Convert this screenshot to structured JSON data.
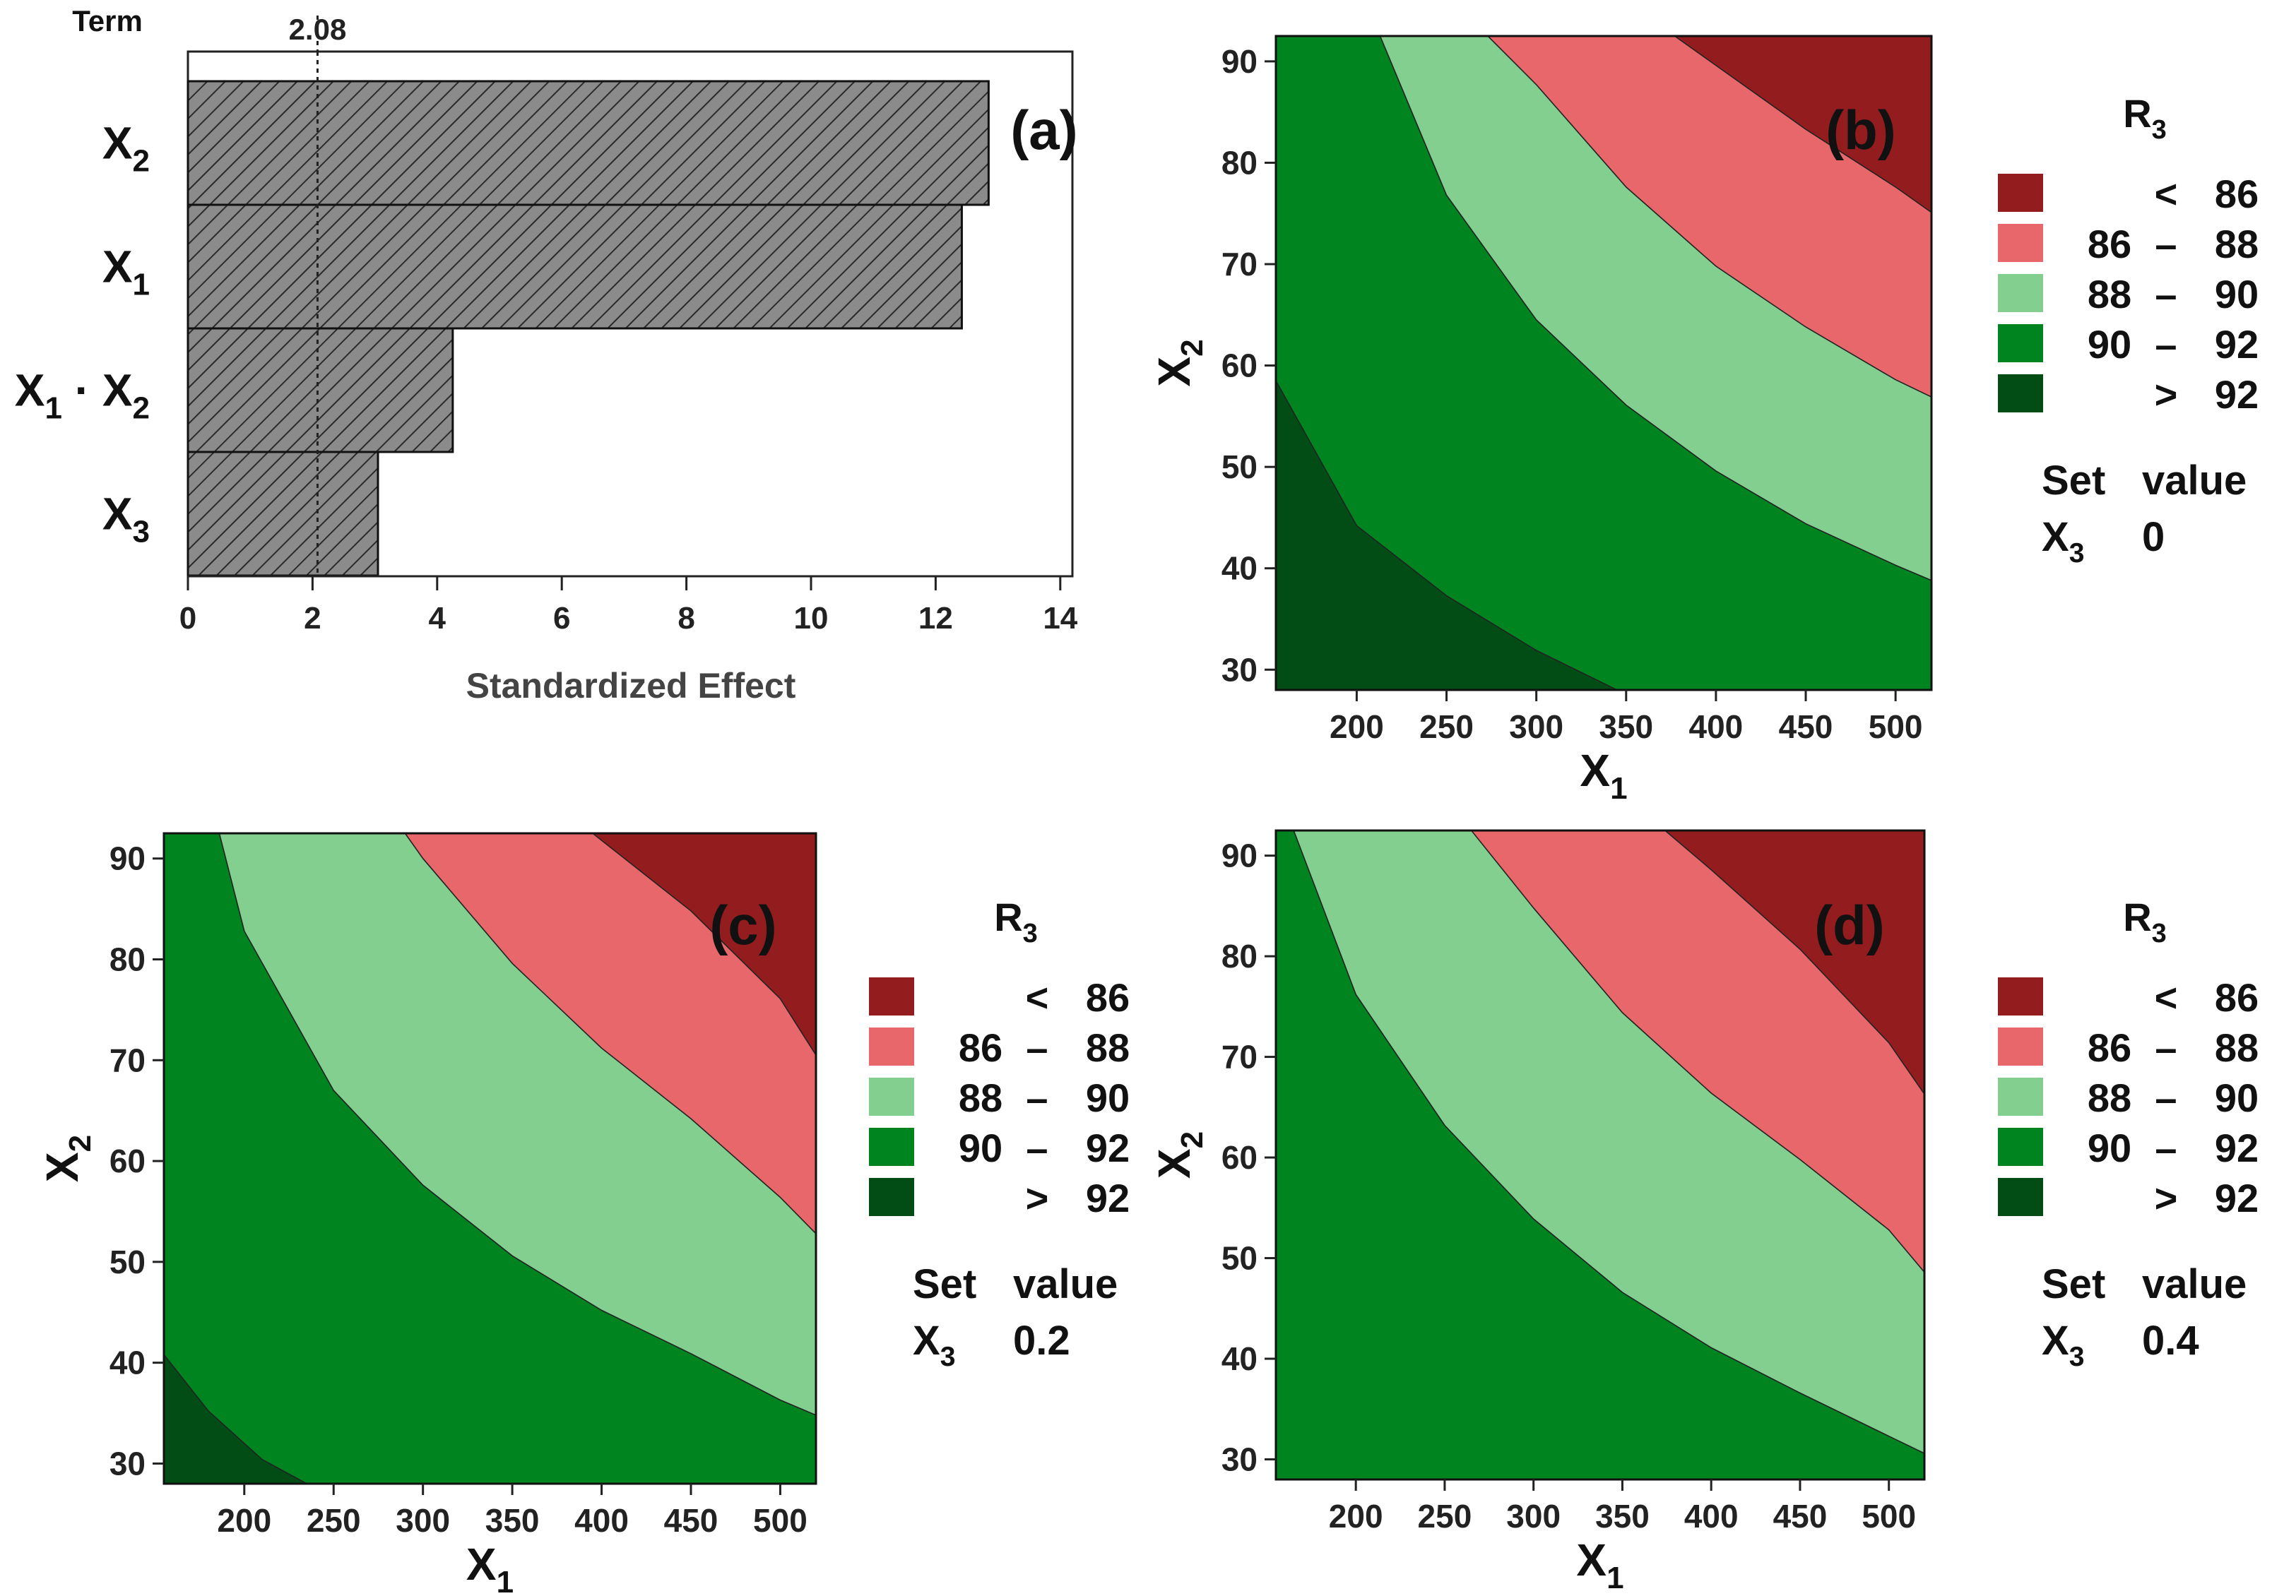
{
  "chart_data": [
    {
      "type": "bar",
      "orientation": "horizontal",
      "panel_label": "(a)",
      "term_header": "Term",
      "xlabel": "Standardized Effect",
      "xlim": [
        0,
        14.2
      ],
      "xticks": [
        0,
        2,
        4,
        6,
        8,
        10,
        12,
        14
      ],
      "reference_value": 2.08,
      "reference_label": "2.08",
      "categories": [
        {
          "base": "X",
          "sub": "2",
          "label": "X2"
        },
        {
          "base": "X",
          "sub": "1",
          "label": "X1"
        },
        {
          "base": "X",
          "sub": "1",
          "mid": " · X",
          "sub2": "2",
          "label": "X1 · X2"
        },
        {
          "base": "X",
          "sub": "3",
          "label": "X3"
        }
      ],
      "values": [
        12.85,
        12.42,
        4.25,
        3.05
      ]
    },
    {
      "type": "contour",
      "panel_label": "(b)",
      "xlabel": {
        "base": "X",
        "sub": "1"
      },
      "ylabel": {
        "base": "X",
        "sub": "2"
      },
      "xlim": [
        155,
        520
      ],
      "ylim": [
        28,
        92.5
      ],
      "xticks": [
        200,
        250,
        300,
        350,
        400,
        450,
        500
      ],
      "yticks": [
        30,
        40,
        50,
        60,
        70,
        80,
        90
      ],
      "legend_title": {
        "base": "R",
        "sub": "3"
      },
      "set_value": {
        "header_left": "Set",
        "header_right": "value",
        "var_base": "X",
        "var_sub": "3",
        "value": "0"
      },
      "boundaries": [
        {
          "level": 92,
          "points": [
            [
              155,
              58.5
            ],
            [
              200,
              44.2
            ],
            [
              250,
              37.3
            ],
            [
              300,
              31.9
            ],
            [
              345,
              28
            ]
          ]
        },
        {
          "level": 90,
          "points": [
            [
              213,
              92.5
            ],
            [
              250,
              76.8
            ],
            [
              300,
              64.5
            ],
            [
              350,
              56.1
            ],
            [
              400,
              49.6
            ],
            [
              450,
              44.4
            ],
            [
              500,
              40.3
            ],
            [
              520,
              38.8
            ]
          ]
        },
        {
          "level": 88,
          "points": [
            [
              273,
              92.5
            ],
            [
              300,
              87.7
            ],
            [
              350,
              77.6
            ],
            [
              400,
              69.8
            ],
            [
              450,
              63.8
            ],
            [
              500,
              58.6
            ],
            [
              520,
              56.9
            ]
          ]
        },
        {
          "level": 86,
          "points": [
            [
              377,
              92.5
            ],
            [
              400,
              89.6
            ],
            [
              450,
              83.3
            ],
            [
              500,
              77.6
            ],
            [
              520,
              75.1
            ]
          ]
        }
      ]
    },
    {
      "type": "contour",
      "panel_label": "(c)",
      "xlabel": {
        "base": "X",
        "sub": "1"
      },
      "ylabel": {
        "base": "X",
        "sub": "2"
      },
      "xlim": [
        155,
        520
      ],
      "ylim": [
        28,
        92.5
      ],
      "xticks": [
        200,
        250,
        300,
        350,
        400,
        450,
        500
      ],
      "yticks": [
        30,
        40,
        50,
        60,
        70,
        80,
        90
      ],
      "legend_title": {
        "base": "R",
        "sub": "3"
      },
      "set_value": {
        "header_left": "Set",
        "header_right": "value",
        "var_base": "X",
        "var_sub": "3",
        "value": "0.2"
      },
      "boundaries": [
        {
          "level": 92,
          "points": [
            [
              155,
              40.8
            ],
            [
              180,
              35.2
            ],
            [
              210,
              30.4
            ],
            [
              235,
              28
            ]
          ]
        },
        {
          "level": 90,
          "points": [
            [
              186,
              92.5
            ],
            [
              200,
              82.8
            ],
            [
              250,
              67.0
            ],
            [
              300,
              57.6
            ],
            [
              350,
              50.6
            ],
            [
              400,
              45.2
            ],
            [
              450,
              40.9
            ],
            [
              500,
              36.3
            ],
            [
              520,
              34.8
            ]
          ]
        },
        {
          "level": 88,
          "points": [
            [
              290,
              92.5
            ],
            [
              300,
              90.0
            ],
            [
              350,
              79.6
            ],
            [
              400,
              71.2
            ],
            [
              450,
              64.2
            ],
            [
              500,
              56.4
            ],
            [
              520,
              52.8
            ]
          ]
        },
        {
          "level": 86,
          "points": [
            [
              395,
              92.5
            ],
            [
              400,
              91.8
            ],
            [
              450,
              84.8
            ],
            [
              500,
              76.1
            ],
            [
              520,
              70.5
            ]
          ]
        }
      ]
    },
    {
      "type": "contour",
      "panel_label": "(d)",
      "xlabel": {
        "base": "X",
        "sub": "1"
      },
      "ylabel": {
        "base": "X",
        "sub": "2"
      },
      "xlim": [
        155,
        520
      ],
      "ylim": [
        28,
        92.5
      ],
      "xticks": [
        200,
        250,
        300,
        350,
        400,
        450,
        500
      ],
      "yticks": [
        30,
        40,
        50,
        60,
        70,
        80,
        90
      ],
      "legend_title": {
        "base": "R",
        "sub": "3"
      },
      "set_value": {
        "header_left": "Set",
        "header_right": "value",
        "var_base": "X",
        "var_sub": "3",
        "value": "0.4"
      },
      "boundaries": [
        {
          "level": 90,
          "points": [
            [
              165,
              92.5
            ],
            [
              200,
              76.2
            ],
            [
              250,
              63.2
            ],
            [
              300,
              53.9
            ],
            [
              350,
              46.6
            ],
            [
              400,
              41.1
            ],
            [
              450,
              36.6
            ],
            [
              500,
              32.3
            ],
            [
              520,
              30.6
            ]
          ]
        },
        {
          "level": 88,
          "points": [
            [
              265,
              92.5
            ],
            [
              300,
              84.8
            ],
            [
              350,
              74.4
            ],
            [
              400,
              66.4
            ],
            [
              450,
              59.8
            ],
            [
              500,
              52.8
            ],
            [
              520,
              48.6
            ]
          ]
        },
        {
          "level": 86,
          "points": [
            [
              374,
              92.5
            ],
            [
              400,
              88.6
            ],
            [
              450,
              80.7
            ],
            [
              500,
              71.4
            ],
            [
              520,
              66.3
            ]
          ]
        }
      ]
    }
  ],
  "legend": {
    "entries": [
      {
        "color": "#931c1f",
        "left": "",
        "dash": "<",
        "right": "86"
      },
      {
        "color": "#e8676b",
        "left": "86",
        "dash": "–",
        "right": "88"
      },
      {
        "color": "#82cf8f",
        "left": "88",
        "dash": "–",
        "right": "90"
      },
      {
        "color": "#008420",
        "left": "90",
        "dash": "–",
        "right": "92"
      },
      {
        "color": "#014d15",
        "left": "",
        "dash": ">",
        "right": "92"
      }
    ]
  },
  "colors": {
    "bar_fill": "#8b8b8b",
    "bar_hatch": "#2a2a2a",
    "above92": "#014d15",
    "r90_92": "#008420",
    "r88_90": "#82cf8f",
    "r86_88": "#e8676b",
    "below86": "#931c1f"
  }
}
